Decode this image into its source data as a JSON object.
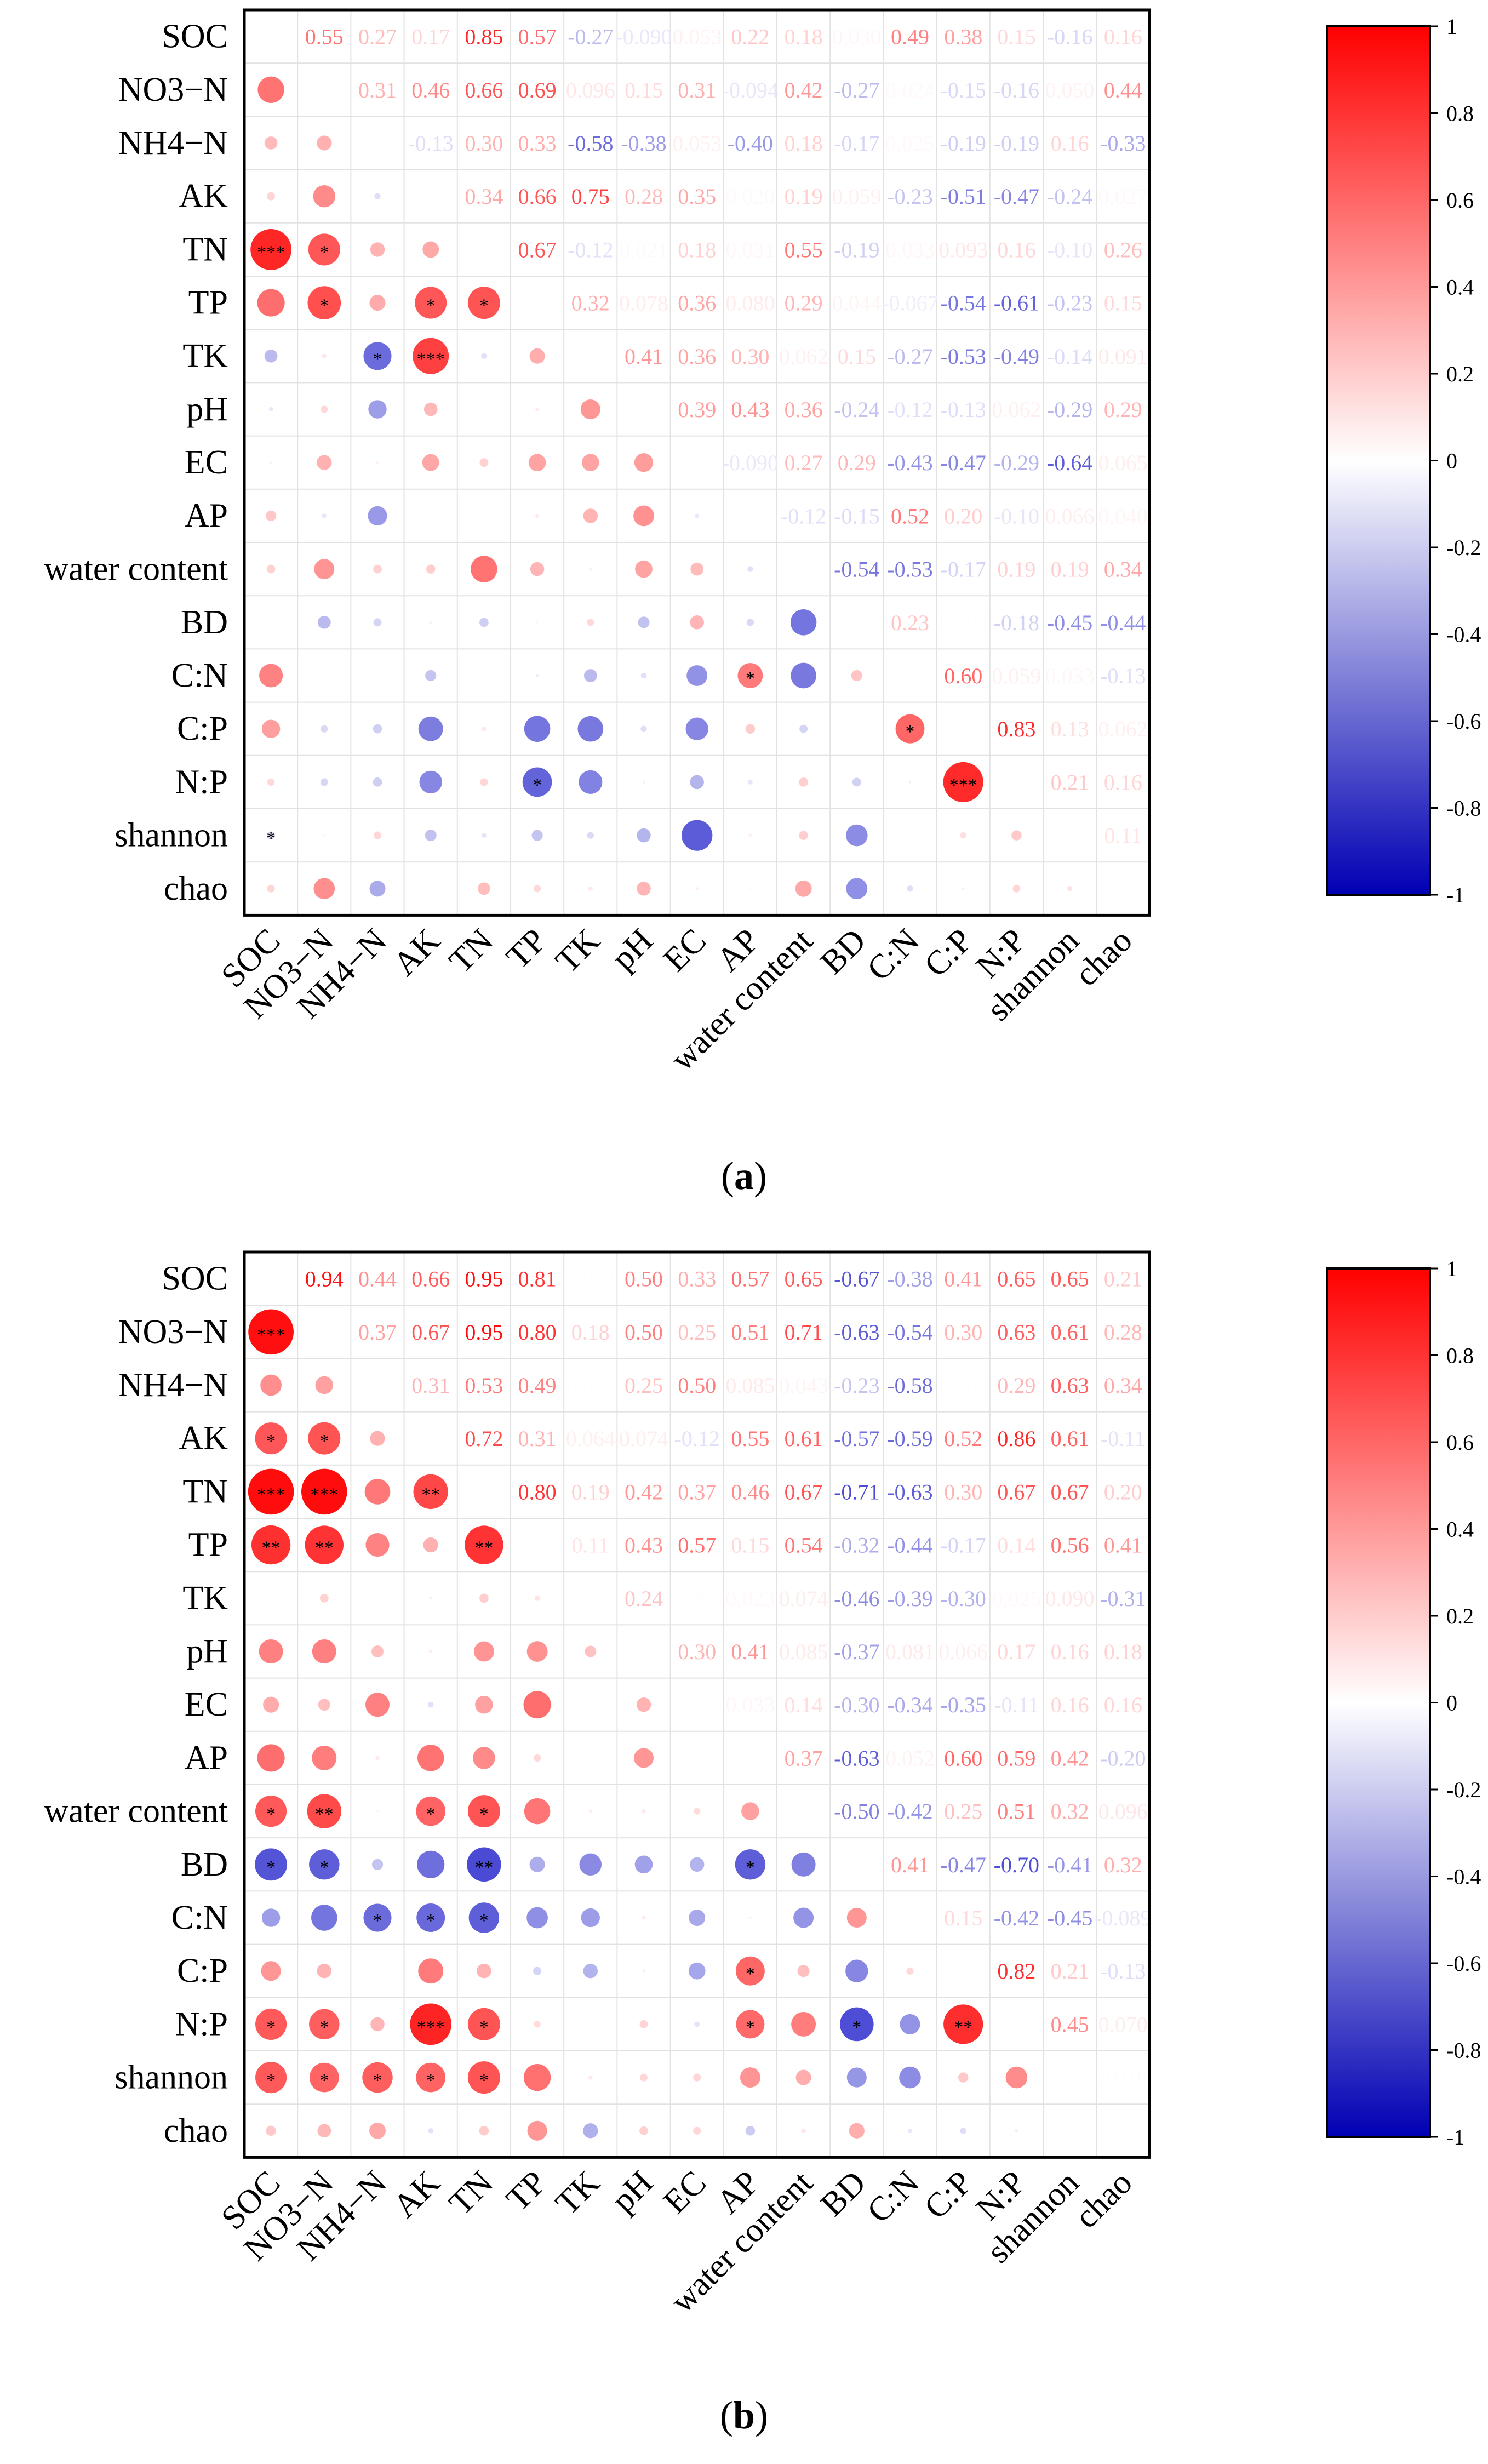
{
  "chart_data": [
    {
      "type": "heatmap",
      "panel_label": "(a)",
      "panel_letter": "a",
      "variables": [
        "SOC",
        "NO3−N",
        "NH4−N",
        "AK",
        "TN",
        "TP",
        "TK",
        "pH",
        "EC",
        "AP",
        "water content",
        "BD",
        "C:N",
        "C:P",
        "N:P",
        "shannon",
        "chao"
      ],
      "upper_values_text": [
        [
          null,
          "0.55",
          "0.27",
          "0.17",
          "0.85",
          "0.57",
          "-0.27",
          "-0.090",
          "0.053",
          "0.22",
          "0.18",
          "0.030",
          "0.49",
          "0.38",
          "0.15",
          "-0.16",
          "0.16"
        ],
        [
          null,
          null,
          "0.31",
          "0.46",
          "0.66",
          "0.69",
          "0.096",
          "0.15",
          "0.31",
          "-0.094",
          "0.42",
          "-0.27",
          "0.024",
          "-0.15",
          "-0.16",
          "0.050",
          "0.44"
        ],
        [
          null,
          null,
          null,
          "-0.13",
          "0.30",
          "0.33",
          "-0.58",
          "-0.38",
          "0.053",
          "-0.40",
          "0.18",
          "-0.17",
          "0.025",
          "-0.19",
          "-0.19",
          "0.16",
          "-0.33"
        ],
        [
          null,
          null,
          null,
          null,
          "0.34",
          "0.66",
          "0.75",
          "0.28",
          "0.35",
          "0.020",
          "0.19",
          "0.059",
          "-0.23",
          "-0.51",
          "-0.47",
          "-0.24",
          "0.027"
        ],
        [
          null,
          null,
          null,
          null,
          null,
          "0.67",
          "-0.12",
          "0.021",
          "0.18",
          "0.031",
          "0.55",
          "-0.19",
          "0.033",
          "0.093",
          "0.16",
          "-0.10",
          "0.26"
        ],
        [
          null,
          null,
          null,
          null,
          null,
          null,
          "0.32",
          "0.078",
          "0.36",
          "0.080",
          "0.29",
          "0.044",
          "-0.067",
          "-0.54",
          "-0.61",
          "-0.23",
          "0.15"
        ],
        [
          null,
          null,
          null,
          null,
          null,
          null,
          null,
          "0.41",
          "0.36",
          "0.30",
          "0.062",
          "0.15",
          "-0.27",
          "-0.53",
          "-0.49",
          "-0.14",
          "0.091"
        ],
        [
          null,
          null,
          null,
          null,
          null,
          null,
          null,
          null,
          "0.39",
          "0.43",
          "0.36",
          "-0.24",
          "-0.12",
          "-0.13",
          "0.062",
          "-0.29",
          "0.29"
        ],
        [
          null,
          null,
          null,
          null,
          null,
          null,
          null,
          null,
          null,
          "-0.090",
          "0.27",
          "0.29",
          "-0.43",
          "-0.47",
          "-0.29",
          "-0.64",
          "0.065"
        ],
        [
          null,
          null,
          null,
          null,
          null,
          null,
          null,
          null,
          null,
          null,
          "-0.12",
          "-0.15",
          "0.52",
          "0.20",
          "-0.10",
          "0.066",
          "0.040"
        ],
        [
          null,
          null,
          null,
          null,
          null,
          null,
          null,
          null,
          null,
          null,
          null,
          "-0.54",
          "-0.53",
          "-0.17",
          "0.19",
          "0.19",
          "0.34"
        ],
        [
          null,
          null,
          null,
          null,
          null,
          null,
          null,
          null,
          null,
          null,
          null,
          null,
          "0.23",
          "0.004",
          "-0.18",
          "-0.45",
          "-0.44"
        ],
        [
          null,
          null,
          null,
          null,
          null,
          null,
          null,
          null,
          null,
          null,
          null,
          null,
          null,
          "0.60",
          "0.059",
          "0.033",
          "-0.13"
        ],
        [
          null,
          null,
          null,
          null,
          null,
          null,
          null,
          null,
          null,
          null,
          null,
          null,
          null,
          null,
          "0.83",
          "0.13",
          "0.062"
        ],
        [
          null,
          null,
          null,
          null,
          null,
          null,
          null,
          null,
          null,
          null,
          null,
          null,
          null,
          null,
          null,
          "0.21",
          "0.16"
        ],
        [
          null,
          null,
          null,
          null,
          null,
          null,
          null,
          null,
          null,
          null,
          null,
          null,
          null,
          null,
          null,
          null,
          "0.11"
        ],
        [
          null,
          null,
          null,
          null,
          null,
          null,
          null,
          null,
          null,
          null,
          null,
          null,
          null,
          null,
          null,
          null,
          null
        ]
      ],
      "significance": [
        [
          15,
          0,
          "*"
        ],
        [
          4,
          0,
          "***"
        ],
        [
          4,
          1,
          "*"
        ],
        [
          5,
          1,
          "*"
        ],
        [
          5,
          3,
          "*"
        ],
        [
          5,
          4,
          "*"
        ],
        [
          6,
          2,
          "*"
        ],
        [
          6,
          3,
          "***"
        ],
        [
          12,
          9,
          "*"
        ],
        [
          13,
          12,
          "*"
        ],
        [
          14,
          5,
          "*"
        ],
        [
          14,
          13,
          "***"
        ]
      ],
      "colorbar": {
        "min": -1,
        "max": 1,
        "ticks": [
          "1",
          "0.8",
          "0.6",
          "0.4",
          "0.2",
          "0",
          "-0.2",
          "-0.4",
          "-0.6",
          "-0.8",
          "-1"
        ]
      }
    },
    {
      "type": "heatmap",
      "panel_label": "(b)",
      "panel_letter": "b",
      "variables": [
        "SOC",
        "NO3−N",
        "NH4−N",
        "AK",
        "TN",
        "TP",
        "TK",
        "pH",
        "EC",
        "AP",
        "water content",
        "BD",
        "C:N",
        "C:P",
        "N:P",
        "shannon",
        "chao"
      ],
      "upper_values_text": [
        [
          null,
          "0.94",
          "0.44",
          "0.66",
          "0.95",
          "0.81",
          "0.002",
          "0.50",
          "0.33",
          "0.57",
          "0.65",
          "-0.67",
          "-0.38",
          "0.41",
          "0.65",
          "0.65",
          "0.21"
        ],
        [
          null,
          null,
          "0.37",
          "0.67",
          "0.95",
          "0.80",
          "0.18",
          "0.50",
          "0.25",
          "0.51",
          "0.71",
          "-0.63",
          "-0.54",
          "0.30",
          "0.63",
          "0.61",
          "0.28"
        ],
        [
          null,
          null,
          null,
          "0.31",
          "0.53",
          "0.49",
          "0.003",
          "0.25",
          "0.50",
          "0.085",
          "0.043",
          "-0.23",
          "-0.58",
          "0.002",
          "0.29",
          "0.63",
          "0.34"
        ],
        [
          null,
          null,
          null,
          null,
          "0.72",
          "0.31",
          "0.064",
          "0.074",
          "-0.12",
          "0.55",
          "0.61",
          "-0.57",
          "-0.59",
          "0.52",
          "0.86",
          "0.61",
          "-0.11"
        ],
        [
          null,
          null,
          null,
          null,
          null,
          "0.80",
          "0.19",
          "0.42",
          "0.37",
          "0.46",
          "0.67",
          "-0.71",
          "-0.63",
          "0.30",
          "0.67",
          "0.67",
          "0.20"
        ],
        [
          null,
          null,
          null,
          null,
          null,
          null,
          "0.11",
          "0.43",
          "0.57",
          "0.15",
          "0.54",
          "-0.32",
          "-0.44",
          "-0.17",
          "0.14",
          "0.56",
          "0.41"
        ],
        [
          null,
          null,
          null,
          null,
          null,
          null,
          null,
          "0.24",
          "0.006",
          "0.023",
          "0.074",
          "-0.46",
          "-0.39",
          "-0.30",
          "0.025",
          "0.090",
          "-0.31"
        ],
        [
          null,
          null,
          null,
          null,
          null,
          null,
          null,
          null,
          "0.30",
          "0.41",
          "0.085",
          "-0.37",
          "0.081",
          "0.066",
          "0.17",
          "0.16",
          "0.18"
        ],
        [
          null,
          null,
          null,
          null,
          null,
          null,
          null,
          null,
          null,
          "0.033",
          "0.14",
          "-0.30",
          "-0.34",
          "-0.35",
          "-0.11",
          "0.16",
          "0.16"
        ],
        [
          null,
          null,
          null,
          null,
          null,
          null,
          null,
          null,
          null,
          null,
          "0.37",
          "-0.63",
          "0.052",
          "0.60",
          "0.59",
          "0.42",
          "-0.20"
        ],
        [
          null,
          null,
          null,
          null,
          null,
          null,
          null,
          null,
          null,
          null,
          null,
          "-0.50",
          "-0.42",
          "0.25",
          "0.51",
          "0.32",
          "0.096"
        ],
        [
          null,
          null,
          null,
          null,
          null,
          null,
          null,
          null,
          null,
          null,
          null,
          null,
          "0.41",
          "-0.47",
          "-0.70",
          "-0.41",
          "0.32"
        ],
        [
          null,
          null,
          null,
          null,
          null,
          null,
          null,
          null,
          null,
          null,
          null,
          null,
          null,
          "0.15",
          "-0.42",
          "-0.45",
          "-0.089"
        ],
        [
          null,
          null,
          null,
          null,
          null,
          null,
          null,
          null,
          null,
          null,
          null,
          null,
          null,
          null,
          "0.82",
          "0.21",
          "-0.13"
        ],
        [
          null,
          null,
          null,
          null,
          null,
          null,
          null,
          null,
          null,
          null,
          null,
          null,
          null,
          null,
          null,
          "0.45",
          "0.070"
        ],
        [
          null,
          null,
          null,
          null,
          null,
          null,
          null,
          null,
          null,
          null,
          null,
          null,
          null,
          null,
          null,
          null,
          "0.010"
        ],
        [
          null,
          null,
          null,
          null,
          null,
          null,
          null,
          null,
          null,
          null,
          null,
          null,
          null,
          null,
          null,
          null,
          null
        ]
      ],
      "significance": [
        [
          1,
          0,
          "***"
        ],
        [
          3,
          0,
          "*"
        ],
        [
          3,
          1,
          "*"
        ],
        [
          4,
          0,
          "***"
        ],
        [
          4,
          1,
          "***"
        ],
        [
          4,
          3,
          "**"
        ],
        [
          5,
          0,
          "**"
        ],
        [
          5,
          1,
          "**"
        ],
        [
          5,
          4,
          "**"
        ],
        [
          10,
          0,
          "*"
        ],
        [
          10,
          1,
          "**"
        ],
        [
          10,
          3,
          "*"
        ],
        [
          10,
          4,
          "*"
        ],
        [
          11,
          0,
          "*"
        ],
        [
          11,
          1,
          "*"
        ],
        [
          11,
          4,
          "**"
        ],
        [
          11,
          9,
          "*"
        ],
        [
          12,
          2,
          "*"
        ],
        [
          12,
          3,
          "*"
        ],
        [
          12,
          4,
          "*"
        ],
        [
          13,
          9,
          "*"
        ],
        [
          14,
          0,
          "*"
        ],
        [
          14,
          1,
          "*"
        ],
        [
          14,
          3,
          "***"
        ],
        [
          14,
          4,
          "*"
        ],
        [
          14,
          9,
          "*"
        ],
        [
          14,
          11,
          "*"
        ],
        [
          14,
          13,
          "**"
        ],
        [
          15,
          0,
          "*"
        ],
        [
          15,
          1,
          "*"
        ],
        [
          15,
          2,
          "*"
        ],
        [
          15,
          3,
          "*"
        ],
        [
          15,
          4,
          "*"
        ]
      ],
      "colorbar": {
        "min": -1,
        "max": 1,
        "ticks": [
          "1",
          "0.8",
          "0.6",
          "0.4",
          "0.2",
          "0",
          "-0.2",
          "-0.4",
          "-0.6",
          "-0.8",
          "-1"
        ]
      }
    }
  ]
}
